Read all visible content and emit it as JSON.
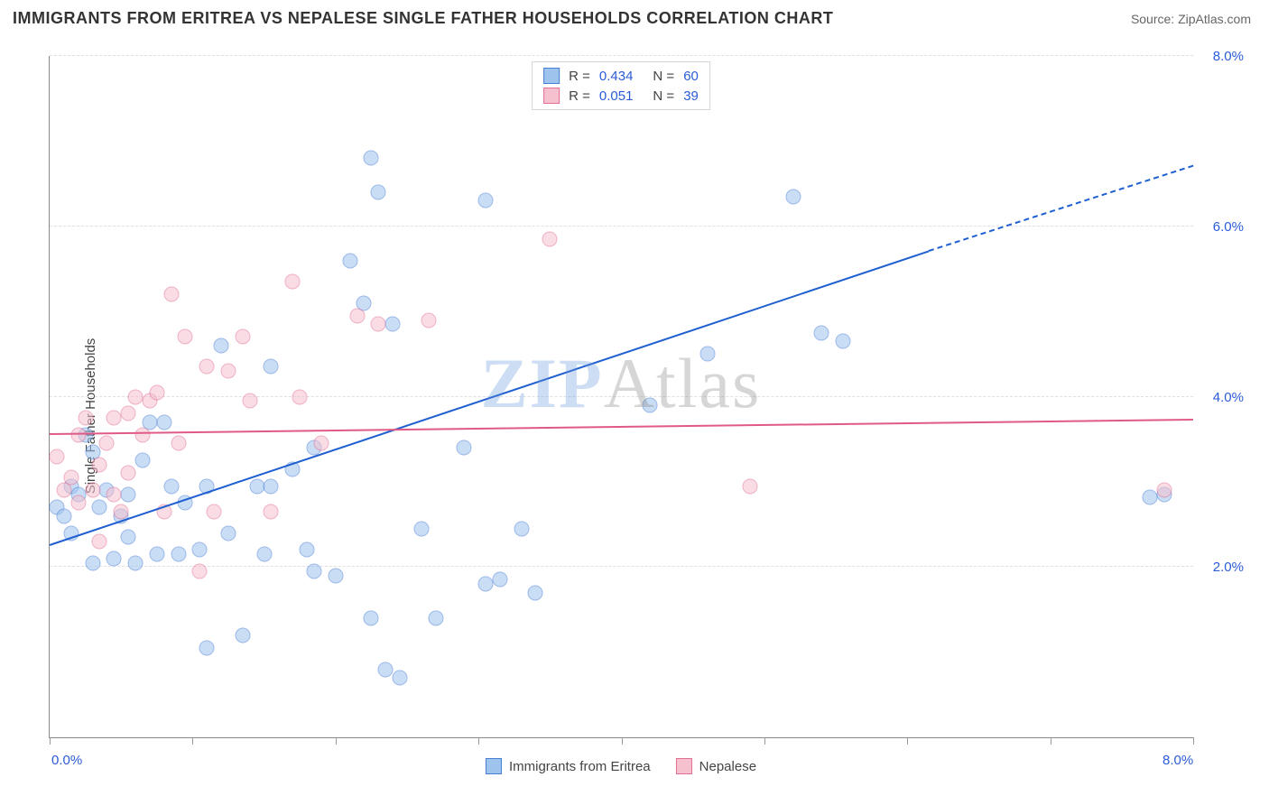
{
  "title": "IMMIGRANTS FROM ERITREA VS NEPALESE SINGLE FATHER HOUSEHOLDS CORRELATION CHART",
  "source_label": "Source:",
  "source_name": "ZipAtlas.com",
  "ylabel": "Single Father Households",
  "watermark_a": "ZIP",
  "watermark_b": "Atlas",
  "chart": {
    "type": "scatter",
    "xlim": [
      0,
      8
    ],
    "ylim": [
      0,
      8
    ],
    "x_tick_positions": [
      0,
      1,
      2,
      3,
      4,
      5,
      6,
      7,
      8
    ],
    "x_tick_labels_shown": {
      "0": "0.0%",
      "8": "8.0%"
    },
    "y_gridlines": [
      2,
      4,
      6,
      8
    ],
    "y_tick_labels": {
      "2": "2.0%",
      "4": "4.0%",
      "6": "6.0%",
      "8": "8.0%"
    },
    "background_color": "#ffffff",
    "grid_color": "#e0e0e0",
    "axis_color": "#888888",
    "tick_label_color": "#2b5cd6",
    "marker_radius": 8.5,
    "marker_opacity": 0.55,
    "series": [
      {
        "name": "Immigrants from Eritrea",
        "key": "eritrea",
        "fill": "#9ec3ed",
        "stroke": "#4a7fd6",
        "trend_color": "#1f5fd0",
        "R": "0.434",
        "N": "60",
        "trend": {
          "x1": 0.0,
          "y1": 2.25,
          "x2": 6.15,
          "y2": 5.7,
          "dash_until_x": 8.0,
          "dash_y2": 6.7
        },
        "points": [
          [
            0.05,
            2.7
          ],
          [
            0.1,
            2.6
          ],
          [
            0.15,
            2.95
          ],
          [
            0.15,
            2.4
          ],
          [
            0.2,
            2.85
          ],
          [
            0.25,
            3.55
          ],
          [
            0.3,
            3.35
          ],
          [
            0.3,
            2.05
          ],
          [
            0.35,
            2.7
          ],
          [
            0.4,
            2.9
          ],
          [
            0.45,
            2.1
          ],
          [
            0.5,
            2.6
          ],
          [
            0.55,
            2.85
          ],
          [
            0.55,
            2.35
          ],
          [
            0.6,
            2.05
          ],
          [
            0.7,
            3.7
          ],
          [
            0.75,
            2.15
          ],
          [
            0.8,
            3.7
          ],
          [
            0.85,
            2.95
          ],
          [
            0.9,
            2.15
          ],
          [
            0.95,
            2.75
          ],
          [
            1.05,
            2.2
          ],
          [
            1.1,
            2.95
          ],
          [
            1.1,
            1.05
          ],
          [
            1.2,
            4.6
          ],
          [
            1.25,
            2.4
          ],
          [
            1.35,
            1.2
          ],
          [
            1.45,
            2.95
          ],
          [
            1.5,
            2.15
          ],
          [
            1.55,
            2.95
          ],
          [
            1.55,
            4.35
          ],
          [
            1.7,
            3.15
          ],
          [
            1.8,
            2.2
          ],
          [
            1.85,
            1.95
          ],
          [
            1.85,
            3.4
          ],
          [
            2.0,
            1.9
          ],
          [
            2.1,
            5.6
          ],
          [
            2.2,
            5.1
          ],
          [
            2.25,
            6.8
          ],
          [
            2.3,
            6.4
          ],
          [
            2.35,
            0.8
          ],
          [
            2.25,
            1.4
          ],
          [
            2.4,
            4.85
          ],
          [
            2.45,
            0.7
          ],
          [
            2.6,
            2.45
          ],
          [
            2.7,
            1.4
          ],
          [
            2.9,
            3.4
          ],
          [
            3.05,
            6.3
          ],
          [
            3.05,
            1.8
          ],
          [
            3.15,
            1.85
          ],
          [
            3.3,
            2.45
          ],
          [
            3.4,
            1.7
          ],
          [
            4.2,
            3.9
          ],
          [
            4.6,
            4.5
          ],
          [
            5.2,
            6.35
          ],
          [
            5.4,
            4.75
          ],
          [
            5.55,
            4.65
          ],
          [
            7.7,
            2.82
          ],
          [
            7.8,
            2.85
          ],
          [
            0.65,
            3.25
          ]
        ]
      },
      {
        "name": "Nepalese",
        "key": "nepalese",
        "fill": "#f5c1ce",
        "stroke": "#e36f94",
        "trend_color": "#e05a88",
        "R": "0.051",
        "N": "39",
        "trend": {
          "x1": 0.0,
          "y1": 3.55,
          "x2": 8.0,
          "y2": 3.72
        },
        "points": [
          [
            0.05,
            3.3
          ],
          [
            0.1,
            2.9
          ],
          [
            0.15,
            3.05
          ],
          [
            0.2,
            2.75
          ],
          [
            0.2,
            3.55
          ],
          [
            0.25,
            3.75
          ],
          [
            0.3,
            2.9
          ],
          [
            0.35,
            3.2
          ],
          [
            0.35,
            2.3
          ],
          [
            0.4,
            3.45
          ],
          [
            0.45,
            2.85
          ],
          [
            0.45,
            3.75
          ],
          [
            0.5,
            2.65
          ],
          [
            0.55,
            3.1
          ],
          [
            0.55,
            3.8
          ],
          [
            0.6,
            4.0
          ],
          [
            0.65,
            3.55
          ],
          [
            0.7,
            3.95
          ],
          [
            0.75,
            4.05
          ],
          [
            0.8,
            2.65
          ],
          [
            0.85,
            5.2
          ],
          [
            0.9,
            3.45
          ],
          [
            0.95,
            4.7
          ],
          [
            1.1,
            4.35
          ],
          [
            1.15,
            2.65
          ],
          [
            1.25,
            4.3
          ],
          [
            1.35,
            4.7
          ],
          [
            1.4,
            3.95
          ],
          [
            1.55,
            2.65
          ],
          [
            1.7,
            5.35
          ],
          [
            1.75,
            4.0
          ],
          [
            1.9,
            3.45
          ],
          [
            2.15,
            4.95
          ],
          [
            2.3,
            4.85
          ],
          [
            2.65,
            4.9
          ],
          [
            3.5,
            5.85
          ],
          [
            4.9,
            2.95
          ],
          [
            7.8,
            2.9
          ],
          [
            1.05,
            1.95
          ]
        ]
      }
    ]
  },
  "legend_bottom": [
    {
      "key": "eritrea",
      "label": "Immigrants from Eritrea"
    },
    {
      "key": "nepalese",
      "label": "Nepalese"
    }
  ]
}
